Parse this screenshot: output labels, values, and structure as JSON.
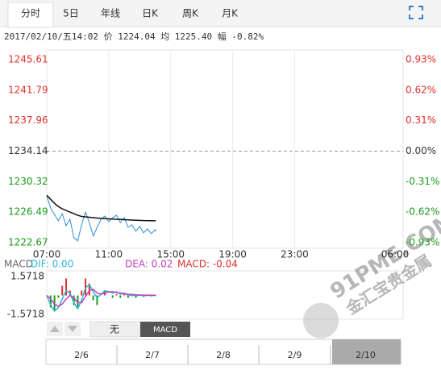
{
  "tabs": [
    "分时",
    "5日",
    "年线",
    "日K",
    "周K",
    "月K"
  ],
  "info": "2017/02/10/五14:02 价 1224.04 均 1225.40 幅 -0.82%",
  "watermark": {
    "domain": "91PME.COM",
    "name": "金汇宝贵金属"
  },
  "buttons": [
    "无",
    "MACD"
  ],
  "navigator": [
    "2/6",
    "2/7",
    "2/8",
    "2/9",
    "2/10"
  ],
  "chart_data": [
    {
      "type": "line",
      "x": [
        "07:00",
        "07:15",
        "07:30",
        "07:45",
        "08:00",
        "08:15",
        "08:30",
        "08:45",
        "09:00",
        "09:15",
        "09:30",
        "09:45",
        "10:00",
        "10:15",
        "10:30",
        "10:45",
        "11:00",
        "11:15",
        "11:30",
        "11:45",
        "12:00",
        "12:15",
        "12:30",
        "12:45",
        "13:00",
        "13:15",
        "13:30",
        "13:45",
        "14:00",
        "14:02"
      ],
      "series": [
        {
          "color": "#2a8fd6",
          "values": [
            1228.6,
            1227.0,
            1226.2,
            1225.4,
            1226.3,
            1224.8,
            1225.6,
            1223.3,
            1222.9,
            1224.9,
            1226.5,
            1225.2,
            1223.5,
            1224.6,
            1225.6,
            1226.0,
            1225.3,
            1225.8,
            1226.1,
            1225.2,
            1225.8,
            1224.6,
            1224.9,
            1224.1,
            1224.7,
            1223.9,
            1224.4,
            1223.8,
            1224.3,
            1224.04
          ]
        },
        {
          "color": "#111111",
          "values": [
            1228.6,
            1228.1,
            1227.6,
            1227.2,
            1226.9,
            1226.7,
            1226.5,
            1226.3,
            1226.1,
            1225.95,
            1225.9,
            1225.85,
            1225.8,
            1225.75,
            1225.7,
            1225.68,
            1225.65,
            1225.62,
            1225.6,
            1225.58,
            1225.55,
            1225.52,
            1225.5,
            1225.48,
            1225.46,
            1225.44,
            1225.43,
            1225.42,
            1225.41,
            1225.4
          ]
        }
      ],
      "xlim": [
        "07:00",
        "06:00"
      ],
      "xticks": [
        "07:00",
        "11:00",
        "15:00",
        "19:00",
        "23:00",
        "06:00"
      ],
      "ylim": [
        1222.67,
        1245.61
      ],
      "yticks": [
        1245.61,
        1241.79,
        1237.96,
        1234.14,
        1230.32,
        1226.49,
        1222.67
      ],
      "y2lim": [
        -0.93,
        0.93
      ],
      "y2ticks": [
        {
          "value": 0.93,
          "label": "0.93%"
        },
        {
          "value": 0.62,
          "label": "0.62%"
        },
        {
          "value": 0.31,
          "label": "0.31%"
        },
        {
          "value": 0,
          "label": "0.00%"
        },
        {
          "value": -0.31,
          "label": "-0.31%"
        },
        {
          "value": -0.62,
          "label": "-0.62%"
        },
        {
          "value": -0.93,
          "label": "-0.93%"
        }
      ],
      "up_color": "#e0302a",
      "down_color": "#1a9a1a",
      "grid": true
    },
    {
      "type": "macd",
      "title": "MACD",
      "labels": [
        "DIF: 0.00",
        "DEA: 0.02",
        "MACD: -0.04"
      ],
      "x": [
        "07:00",
        "07:15",
        "07:30",
        "07:45",
        "08:00",
        "08:15",
        "08:30",
        "08:45",
        "09:00",
        "09:15",
        "09:30",
        "09:45",
        "10:00",
        "10:15",
        "10:30",
        "10:45",
        "11:00",
        "11:15",
        "11:30",
        "11:45",
        "12:00",
        "12:15",
        "12:30",
        "12:45",
        "13:00",
        "13:15",
        "13:30",
        "13:45",
        "14:00",
        "14:02"
      ],
      "series": [
        {
          "color": "#2bb5d8",
          "values": [
            0,
            -0.8,
            -1.3,
            -1.0,
            -0.3,
            0.4,
            0.2,
            -0.6,
            -1.1,
            -0.4,
            0.6,
            0.9,
            0.3,
            -0.2,
            0.1,
            0.4,
            0.3,
            0.2,
            0.3,
            0.1,
            0.2,
            0,
            0.05,
            -0.05,
            0.02,
            -0.03,
            0.01,
            -0.02,
            0.01,
            0
          ]
        },
        {
          "color": "#c040c0",
          "values": [
            0,
            -0.3,
            -0.7,
            -0.9,
            -0.7,
            -0.3,
            0,
            -0.2,
            -0.6,
            -0.6,
            -0.1,
            0.4,
            0.5,
            0.2,
            0.1,
            0.2,
            0.3,
            0.3,
            0.25,
            0.2,
            0.15,
            0.1,
            0.08,
            0.05,
            0.04,
            0.03,
            0.03,
            0.02,
            0.02,
            0.02
          ]
        },
        {
          "color": "#e0302a",
          "values": [
            0,
            -1.0,
            -1.2,
            -0.2,
            0.8,
            1.4,
            0.4,
            -0.8,
            -1.0,
            0.4,
            1.4,
            1.0,
            -0.4,
            -0.8,
            0,
            0.4,
            0,
            -0.2,
            0.1,
            -0.2,
            0.1,
            -0.2,
            -0.06,
            -0.2,
            -0.04,
            -0.12,
            -0.04,
            -0.08,
            -0.02,
            -0.04
          ]
        }
      ],
      "ylim": [
        -1.5718,
        1.5718
      ],
      "yticks": [
        1.5718,
        -1.5718
      ],
      "up_color": "#e0302a",
      "down_color": "#1a9a1a"
    }
  ]
}
